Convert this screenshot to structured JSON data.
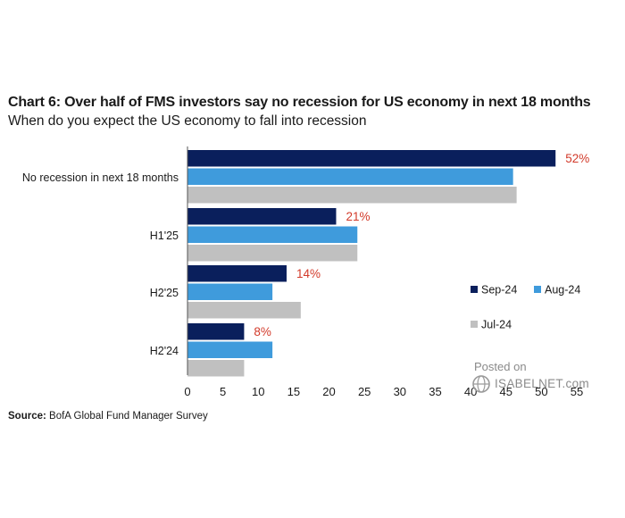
{
  "header": {
    "title": "Chart 6: Over half of FMS investors say no recession for US economy in next 18 months",
    "subtitle": "When do you expect the US economy to fall into recession"
  },
  "source": {
    "label": "Source:",
    "text": "BofA Global Fund Manager Survey"
  },
  "watermark": {
    "line1": "Posted on",
    "line2": "ISABELNET.com"
  },
  "chart_data": {
    "type": "bar",
    "orientation": "horizontal",
    "categories": [
      "No recession in next 18 months",
      "H1'25",
      "H2'25",
      "H2'24"
    ],
    "series": [
      {
        "name": "Sep-24",
        "color": "#0a1f5c",
        "values": [
          52,
          21,
          14,
          8
        ]
      },
      {
        "name": "Aug-24",
        "color": "#3f9bdc",
        "values": [
          46,
          24,
          12,
          12
        ]
      },
      {
        "name": "Jul-24",
        "color": "#c0c0c0",
        "values": [
          46.5,
          24,
          16,
          8
        ]
      }
    ],
    "data_labels": {
      "series": "Sep-24",
      "texts": [
        "52%",
        "21%",
        "14%",
        "8%"
      ],
      "color": "#d23a2a"
    },
    "xticks": [
      0,
      5,
      10,
      15,
      20,
      25,
      30,
      35,
      40,
      45,
      50,
      55
    ],
    "xlim": [
      0,
      55
    ],
    "grid": false,
    "legend_position": "right"
  }
}
